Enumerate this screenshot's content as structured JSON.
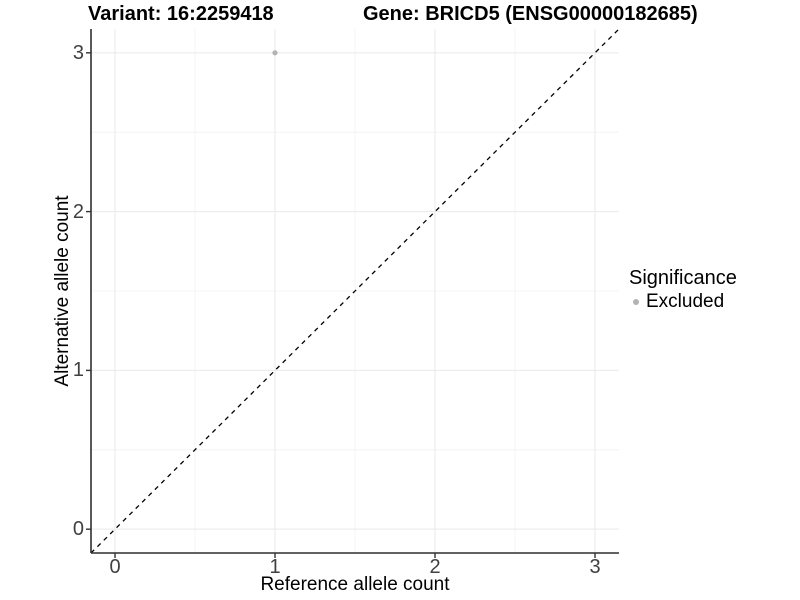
{
  "header": {
    "variant_title": "Variant: 16:2259418",
    "gene_title": "Gene: BRICD5 (ENSG00000182685)"
  },
  "axes": {
    "x": {
      "label": "Reference allele count",
      "ticks": [
        "0",
        "1",
        "2",
        "3"
      ]
    },
    "y": {
      "label": "Alternative allele count",
      "ticks": [
        "0",
        "1",
        "2",
        "3"
      ]
    }
  },
  "legend": {
    "title": "Significance",
    "items": [
      {
        "label": "Excluded",
        "color": "#b3b3b3"
      }
    ]
  },
  "colors": {
    "background": "#ffffff",
    "point": "#b3b3b3",
    "grid_major": "#e9e9e9",
    "grid_minor": "#f4f4f4",
    "axis_line": "#2f2f2f",
    "tick_mark": "#333333",
    "tick_text": "#404040",
    "identity_line": "#000000"
  },
  "chart_data": {
    "type": "scatter",
    "title": "Variant: 16:2259418    Gene: BRICD5 (ENSG00000182685)",
    "xlabel": "Reference allele count",
    "ylabel": "Alternative allele count",
    "xlim": [
      -0.15,
      3.15
    ],
    "ylim": [
      -0.15,
      3.15
    ],
    "x_ticks": [
      0,
      1,
      2,
      3
    ],
    "y_ticks": [
      0,
      1,
      2,
      3
    ],
    "grid": {
      "major": [
        0,
        1,
        2,
        3
      ],
      "minor": [
        0.5,
        1.5,
        2.5
      ],
      "visible": true
    },
    "series": [
      {
        "name": "Excluded",
        "color": "#b3b3b3",
        "points": [
          {
            "x": 1,
            "y": 3
          }
        ]
      }
    ],
    "reference_line": {
      "kind": "identity",
      "equation": "y = x",
      "style": "dashed",
      "color": "#000000"
    },
    "legend_position": "right",
    "legend_title": "Significance"
  }
}
